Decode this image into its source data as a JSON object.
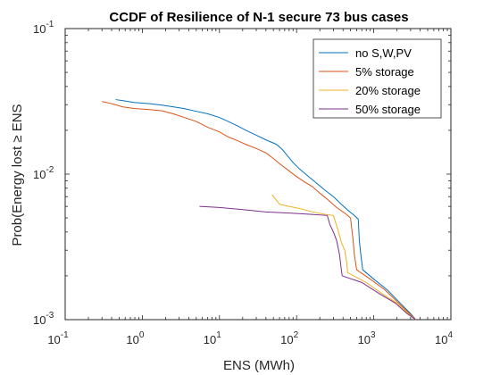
{
  "chart_data": {
    "type": "line",
    "title": "CCDF of Resilience of N-1 secure 73 bus cases",
    "xlabel": "ENS (MWh)",
    "ylabel": "Prob(Energy lost ≥ ENS",
    "xscale": "log",
    "yscale": "log",
    "xlim": [
      0.1,
      10000
    ],
    "ylim": [
      0.001,
      0.1
    ],
    "x_ticks": [
      {
        "base": "10",
        "exp": "-1"
      },
      {
        "base": "10",
        "exp": "0"
      },
      {
        "base": "10",
        "exp": "1"
      },
      {
        "base": "10",
        "exp": "2"
      },
      {
        "base": "10",
        "exp": "3"
      },
      {
        "base": "10",
        "exp": "4"
      }
    ],
    "y_ticks": [
      {
        "base": "10",
        "exp": "-3"
      },
      {
        "base": "10",
        "exp": "-2"
      },
      {
        "base": "10",
        "exp": "-1"
      }
    ],
    "grid": false,
    "legend_position": "top-right",
    "series": [
      {
        "name": "no S,W,PV",
        "color": "#0072BD",
        "points": [
          [
            0.45,
            0.0325
          ],
          [
            0.55,
            0.032
          ],
          [
            0.8,
            0.031
          ],
          [
            1.2,
            0.0305
          ],
          [
            1.8,
            0.0298
          ],
          [
            2.5,
            0.029
          ],
          [
            3.5,
            0.0282
          ],
          [
            5,
            0.027
          ],
          [
            7,
            0.026
          ],
          [
            10,
            0.0245
          ],
          [
            13,
            0.023
          ],
          [
            17,
            0.0215
          ],
          [
            22,
            0.02
          ],
          [
            30,
            0.0185
          ],
          [
            40,
            0.0172
          ],
          [
            55,
            0.016
          ],
          [
            65,
            0.0148
          ],
          [
            75,
            0.0135
          ],
          [
            90,
            0.012
          ],
          [
            110,
            0.0108
          ],
          [
            140,
            0.0097
          ],
          [
            180,
            0.0087
          ],
          [
            230,
            0.0078
          ],
          [
            300,
            0.007
          ],
          [
            380,
            0.0062
          ],
          [
            470,
            0.0056
          ],
          [
            560,
            0.0052
          ],
          [
            630,
            0.0049
          ],
          [
            650,
            0.0035
          ],
          [
            680,
            0.0028
          ],
          [
            720,
            0.0022
          ],
          [
            1000,
            0.0019
          ],
          [
            1500,
            0.0016
          ],
          [
            2200,
            0.0013
          ],
          [
            3000,
            0.0011
          ],
          [
            3500,
            0.001
          ]
        ]
      },
      {
        "name": "5% storage",
        "color": "#D95319",
        "points": [
          [
            0.3,
            0.0315
          ],
          [
            0.4,
            0.0305
          ],
          [
            0.55,
            0.029
          ],
          [
            0.8,
            0.0282
          ],
          [
            1.2,
            0.0278
          ],
          [
            1.8,
            0.0272
          ],
          [
            2.5,
            0.026
          ],
          [
            3.5,
            0.0245
          ],
          [
            5,
            0.023
          ],
          [
            7,
            0.021
          ],
          [
            10,
            0.0195
          ],
          [
            13,
            0.018
          ],
          [
            17,
            0.017
          ],
          [
            22,
            0.016
          ],
          [
            30,
            0.015
          ],
          [
            40,
            0.014
          ],
          [
            50,
            0.0128
          ],
          [
            60,
            0.0118
          ],
          [
            75,
            0.0108
          ],
          [
            95,
            0.0098
          ],
          [
            120,
            0.009
          ],
          [
            160,
            0.0082
          ],
          [
            200,
            0.0074
          ],
          [
            260,
            0.0066
          ],
          [
            330,
            0.0059
          ],
          [
            420,
            0.0054
          ],
          [
            500,
            0.005
          ],
          [
            540,
            0.0035
          ],
          [
            560,
            0.0028
          ],
          [
            600,
            0.0022
          ],
          [
            900,
            0.0019
          ],
          [
            1400,
            0.0016
          ],
          [
            2100,
            0.0013
          ],
          [
            2900,
            0.0011
          ],
          [
            3500,
            0.001
          ]
        ]
      },
      {
        "name": "20% storage",
        "color": "#EDB120",
        "points": [
          [
            48,
            0.0072
          ],
          [
            55,
            0.0066
          ],
          [
            60,
            0.0062
          ],
          [
            80,
            0.006
          ],
          [
            110,
            0.0058
          ],
          [
            160,
            0.0055
          ],
          [
            230,
            0.0053
          ],
          [
            300,
            0.0052
          ],
          [
            350,
            0.004
          ],
          [
            380,
            0.0034
          ],
          [
            420,
            0.003
          ],
          [
            440,
            0.0026
          ],
          [
            460,
            0.0021
          ],
          [
            800,
            0.0018
          ],
          [
            1300,
            0.0015
          ],
          [
            2000,
            0.0013
          ],
          [
            2800,
            0.0011
          ],
          [
            3500,
            0.001
          ]
        ]
      },
      {
        "name": "50% storage",
        "color": "#7E2F8E",
        "points": [
          [
            5.5,
            0.006
          ],
          [
            10,
            0.0059
          ],
          [
            20,
            0.0057
          ],
          [
            40,
            0.0055
          ],
          [
            80,
            0.0054
          ],
          [
            150,
            0.0053
          ],
          [
            250,
            0.0052
          ],
          [
            270,
            0.0045
          ],
          [
            300,
            0.004
          ],
          [
            330,
            0.0035
          ],
          [
            360,
            0.0028
          ],
          [
            380,
            0.0022
          ],
          [
            390,
            0.002
          ],
          [
            700,
            0.0018
          ],
          [
            1200,
            0.0015
          ],
          [
            1900,
            0.0013
          ],
          [
            2700,
            0.0011
          ],
          [
            3500,
            0.001
          ]
        ]
      }
    ]
  }
}
